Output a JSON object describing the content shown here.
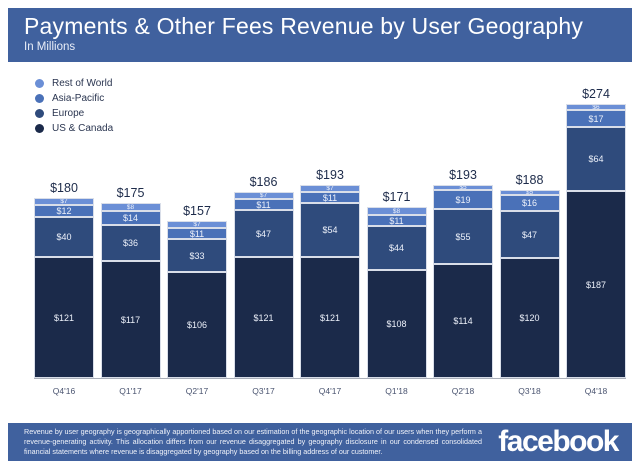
{
  "header": {
    "title": "Payments & Other Fees Revenue by User Geography",
    "subtitle": "In Millions"
  },
  "chart_data": {
    "type": "bar",
    "stacked": true,
    "title": "Payments & Other Fees Revenue by User Geography",
    "subtitle": "In Millions",
    "value_unit": "USD millions",
    "value_prefix": "$",
    "categories": [
      "Q4'16",
      "Q1'17",
      "Q2'17",
      "Q3'17",
      "Q4'17",
      "Q1'18",
      "Q2'18",
      "Q3'18",
      "Q4'18"
    ],
    "series": [
      {
        "name": "US & Canada",
        "color": "#1b2a4a",
        "values": [
          121,
          117,
          106,
          121,
          121,
          108,
          114,
          120,
          187
        ]
      },
      {
        "name": "Europe",
        "color": "#2f4b7c",
        "values": [
          40,
          36,
          33,
          47,
          54,
          44,
          55,
          47,
          64
        ]
      },
      {
        "name": "Asia-Pacific",
        "color": "#4a71b8",
        "values": [
          12,
          14,
          11,
          11,
          11,
          11,
          19,
          16,
          17
        ]
      },
      {
        "name": "Rest of World",
        "color": "#6b8fd6",
        "values": [
          7,
          8,
          7,
          7,
          7,
          8,
          5,
          5,
          6
        ]
      }
    ],
    "totals": [
      180,
      175,
      157,
      186,
      193,
      171,
      193,
      188,
      274
    ],
    "ylim": [
      0,
      280
    ],
    "grid": false,
    "legend_position": "top-left",
    "axis_line_color": "#a9aeb8"
  },
  "colors": {
    "banner_blue": "#40619e",
    "total_label": "#1d2b4a"
  },
  "footer": {
    "note": "Revenue by user geography is geographically apportioned based on our estimation of the geographic location of our users when they perform a revenue-generating activity. This allocation differs from our revenue disaggregated by geography disclosure in our condensed consolidated financial statements where revenue is disaggregated by geography based on the billing address of our customer.",
    "logo": "facebook"
  }
}
